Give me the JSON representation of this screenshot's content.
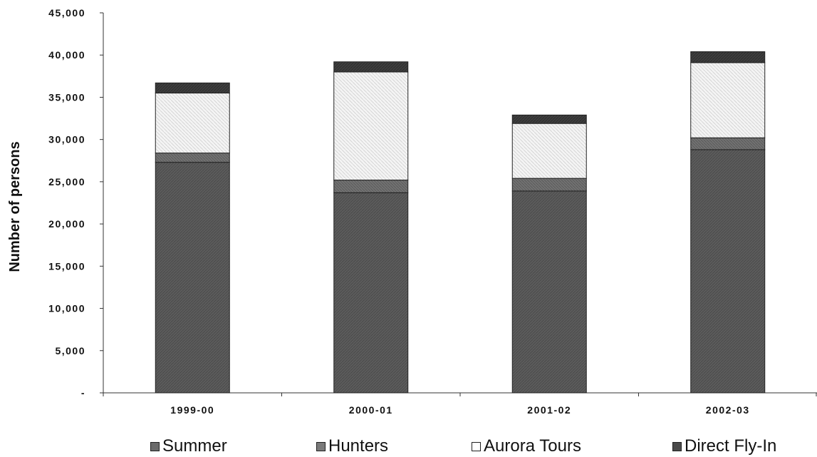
{
  "chart_data": {
    "type": "bar",
    "stacked": true,
    "title": "",
    "xlabel": "",
    "ylabel": "Number of persons",
    "ylim": [
      0,
      45000
    ],
    "yticks": [
      0,
      5000,
      10000,
      15000,
      20000,
      25000,
      30000,
      35000,
      40000,
      45000
    ],
    "ytick_labels": [
      "-",
      "5,000",
      "10,000",
      "15,000",
      "20,000",
      "25,000",
      "30,000",
      "35,000",
      "40,000",
      "45,000"
    ],
    "categories": [
      "1999-00",
      "2000-01",
      "2001-02",
      "2002-03"
    ],
    "series": [
      {
        "name": "Summer",
        "values": [
          27300,
          23700,
          23900,
          28800
        ],
        "color": "#5a5a5a"
      },
      {
        "name": "Hunters",
        "values": [
          1100,
          1500,
          1500,
          1400
        ],
        "color": "#6e6e6e"
      },
      {
        "name": "Aurora Tours",
        "values": [
          7100,
          12800,
          6500,
          8900
        ],
        "color": "#f2f2f2"
      },
      {
        "name": "Direct Fly-In",
        "values": [
          1200,
          1200,
          1000,
          1300
        ],
        "color": "#404040"
      }
    ],
    "grid": false,
    "legend_position": "bottom"
  }
}
